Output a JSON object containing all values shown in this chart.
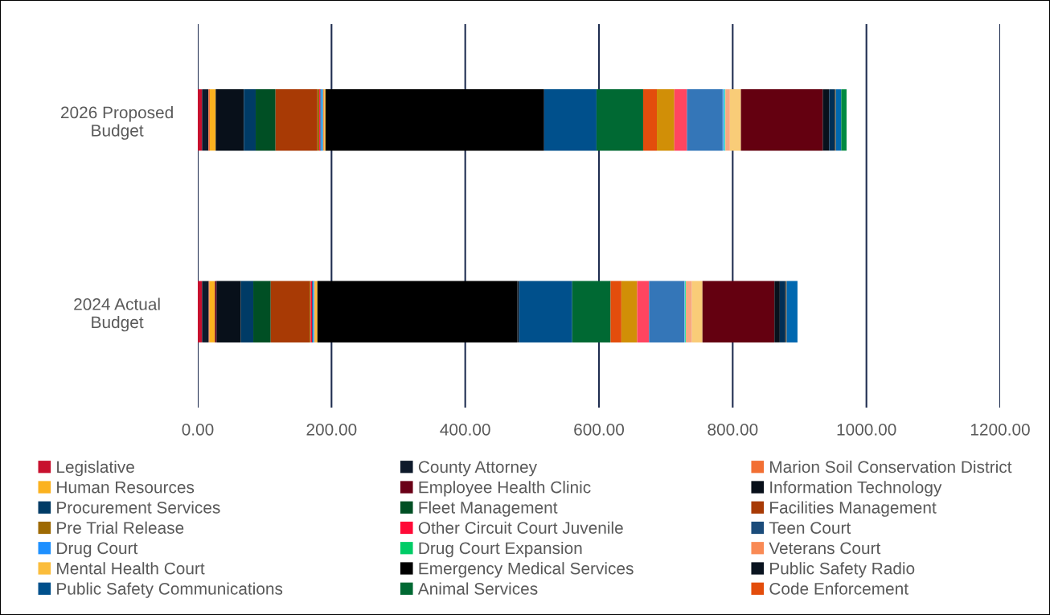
{
  "chart_data": {
    "type": "bar",
    "orientation": "horizontal",
    "stacked": true,
    "categories": [
      "2026 Proposed Budget",
      "2024 Actual Budget"
    ],
    "xlim": [
      0,
      1200
    ],
    "xticks": [
      {
        "value": 0,
        "label": "0.00"
      },
      {
        "value": 200,
        "label": "200.00"
      },
      {
        "value": 400,
        "label": "400.00"
      },
      {
        "value": 600,
        "label": "600.00"
      },
      {
        "value": 800,
        "label": "800.00"
      },
      {
        "value": 1000,
        "label": "1000.00"
      },
      {
        "value": 1200,
        "label": "1200.00"
      }
    ],
    "grid": "x",
    "legend": "bottom",
    "series": [
      {
        "name": "Legislative",
        "color": "#c8102e",
        "values": [
          6.4,
          6.4
        ]
      },
      {
        "name": "County Attorney",
        "color": "#0e1a2b",
        "values": [
          9.6,
          10.0
        ]
      },
      {
        "name": "Marion Soil Conservation District",
        "color": "#f26f33",
        "values": [
          2.0,
          1.2
        ]
      },
      {
        "name": "Human Resources",
        "color": "#fbb21f",
        "values": [
          8.8,
          8.0
        ]
      },
      {
        "name": "Employee Health Clinic",
        "color": "#6a0017",
        "values": [
          null,
          2.4
        ]
      },
      {
        "name": "Information Technology",
        "color": "#08101a",
        "values": [
          42.1,
          36.5
        ]
      },
      {
        "name": "Procurement Services",
        "color": "#003b66",
        "values": [
          17.7,
          18.5
        ]
      },
      {
        "name": "Fleet Management",
        "color": "#004f24",
        "values": [
          29.7,
          26.1
        ]
      },
      {
        "name": "Facilities Management",
        "color": "#a83a05",
        "values": [
          62.6,
          58.2
        ]
      },
      {
        "name": "Pre Trial Release",
        "color": "#9e6a03",
        "values": [
          2.8,
          1.6
        ]
      },
      {
        "name": "Other Circuit Court Juvenile",
        "color": "#ff0a37",
        "values": [
          1.6,
          2.0
        ]
      },
      {
        "name": "Teen Court",
        "color": "#1b4c7a",
        "values": [
          1.2,
          1.2
        ]
      },
      {
        "name": "Drug Court",
        "color": "#1e90ff",
        "values": [
          2.4,
          1.6
        ]
      },
      {
        "name": "Drug Court Expansion",
        "color": "#00cc66",
        "values": [
          0.5,
          0.4
        ]
      },
      {
        "name": "Veterans Court",
        "color": "#f98a55",
        "values": [
          1.6,
          1.2
        ]
      },
      {
        "name": "Mental Health Court",
        "color": "#fbbd3c",
        "values": [
          2.0,
          3.6
        ]
      },
      {
        "name": "Emergency Medical Services",
        "color": "#000000",
        "values": [
          326.1,
          299.2
        ]
      },
      {
        "name": "Public Safety Radio",
        "color": "#0a1420",
        "values": [
          1.0,
          2.4
        ]
      },
      {
        "name": "Public Safety Communications",
        "color": "#00508c",
        "values": [
          78.2,
          79.5
        ]
      },
      {
        "name": "Animal Services",
        "color": "#006933",
        "values": [
          69.8,
          57.4
        ]
      },
      {
        "name": "Code Enforcement",
        "color": "#e34d0c",
        "values": [
          20.5,
          16.1
        ]
      },
      {
        "color": "#d18f07",
        "values": [
          26.1,
          23.7
        ]
      },
      {
        "color": "#ff4560",
        "values": [
          18.9,
          17.7
        ]
      },
      {
        "color": "#3476b8",
        "values": [
          53.4,
          53.0
        ]
      },
      {
        "color": "#5ab4f0",
        "values": [
          2.8,
          0.8
        ]
      },
      {
        "color": "#2ee6a0",
        "values": [
          1.2,
          1.2
        ]
      },
      {
        "color": "#f8a880",
        "values": [
          6.8,
          9.2
        ]
      },
      {
        "color": "#f9cc78",
        "values": [
          16.5,
          15.7
        ]
      },
      {
        "color": "#640010",
        "values": [
          122.4,
          107.6
        ]
      },
      {
        "color": "#08111c",
        "values": [
          9.6,
          8.0
        ]
      },
      {
        "color": "#002f55",
        "values": [
          8.0,
          8.4
        ]
      },
      {
        "color": "#6b5a40",
        "values": [
          2.0,
          2.0
        ]
      },
      {
        "color": "#0068b0",
        "values": [
          8.0,
          16.1
        ]
      },
      {
        "color": "#008a40",
        "values": [
          8.0,
          null
        ]
      }
    ]
  }
}
